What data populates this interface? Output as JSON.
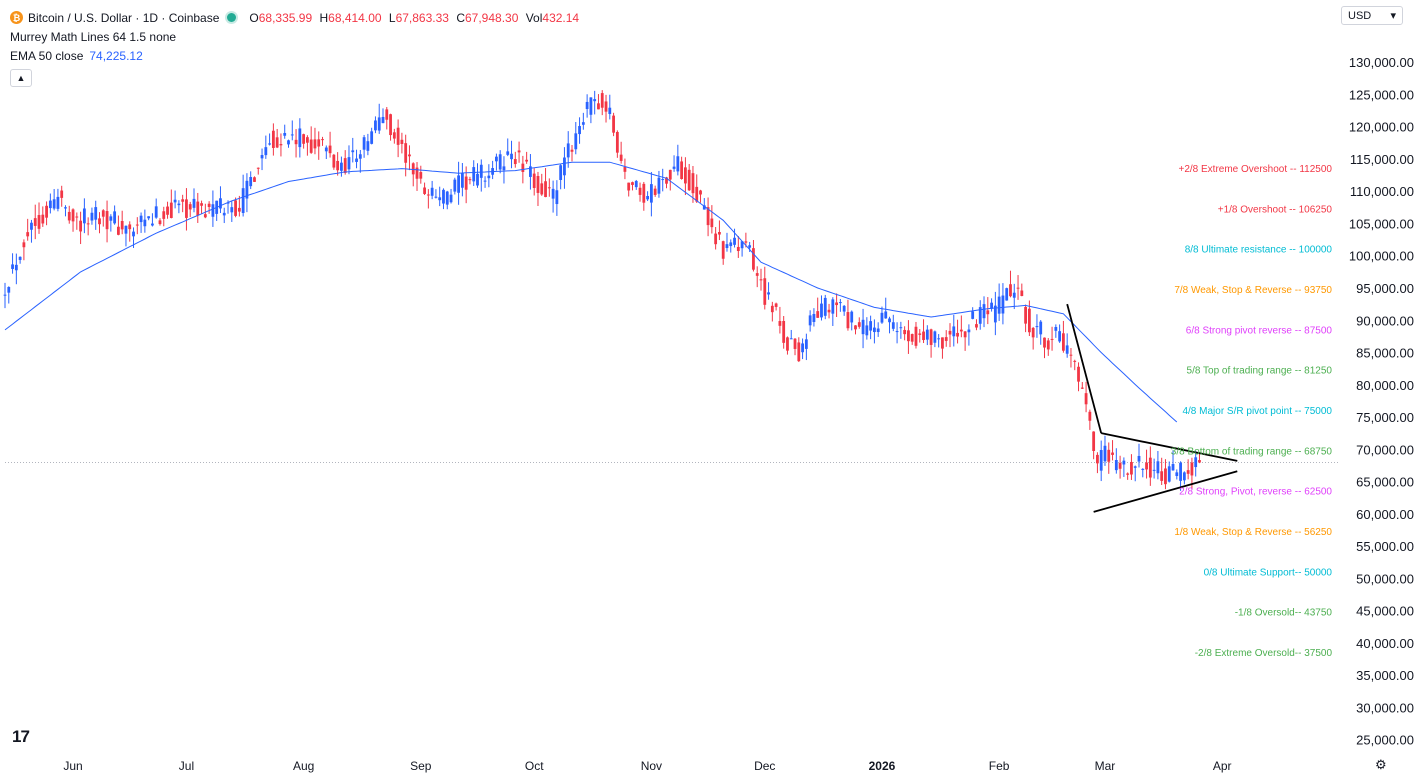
{
  "header": {
    "symbol_title": "Bitcoin / U.S. Dollar · 1D · Coinbase",
    "ohlc": [
      {
        "key": "O",
        "value": "68,335.99"
      },
      {
        "key": "H",
        "value": "68,414.00"
      },
      {
        "key": "L",
        "value": "67,863.33"
      },
      {
        "key": "C",
        "value": "67,948.30"
      },
      {
        "key": "Vol",
        "value": "432.14"
      }
    ],
    "indicator1": "Murrey Math Lines 64 1.5 none",
    "indicator2_label": "EMA 50 close",
    "indicator2_value": "74,225.12",
    "collapse_icon": "chevron-up-icon"
  },
  "currency_select": "USD",
  "icons": {
    "coin": "bitcoin-icon",
    "logo": "tradingview-logo",
    "settings": "gear-icon"
  },
  "colors": {
    "up": "#2962ff",
    "down": "#f23645",
    "ema": "#2962ff",
    "line_ref": "#b2b5be"
  },
  "chart_data": {
    "type": "candlestick",
    "y_axis": {
      "min": 22000,
      "max": 132000,
      "ticks": [
        "130,000.00",
        "125,000.00",
        "120,000.00",
        "115,000.00",
        "110,000.00",
        "105,000.00",
        "100,000.00",
        "95,000.00",
        "90,000.00",
        "85,000.00",
        "80,000.00",
        "75,000.00",
        "70,000.00",
        "65,000.00",
        "60,000.00",
        "55,000.00",
        "50,000.00",
        "45,000.00",
        "40,000.00",
        "35,000.00",
        "30,000.00",
        "25,000.00"
      ]
    },
    "x_axis": {
      "labels": [
        {
          "text": "Jun",
          "day": 18
        },
        {
          "text": "Jul",
          "day": 48
        },
        {
          "text": "Aug",
          "day": 79
        },
        {
          "text": "Sep",
          "day": 110
        },
        {
          "text": "Oct",
          "day": 140
        },
        {
          "text": "Nov",
          "day": 171
        },
        {
          "text": "Dec",
          "day": 201
        },
        {
          "text": "2026",
          "day": 232,
          "bold": true
        },
        {
          "text": "Feb",
          "day": 263
        },
        {
          "text": "Mar",
          "day": 291
        },
        {
          "text": "Apr",
          "day": 322
        }
      ]
    },
    "price_anchors": [
      [
        0,
        95500
      ],
      [
        6,
        104000
      ],
      [
        14,
        109000
      ],
      [
        20,
        105000
      ],
      [
        24,
        107000
      ],
      [
        33,
        103500
      ],
      [
        40,
        106000
      ],
      [
        46,
        108000
      ],
      [
        52,
        107000
      ],
      [
        62,
        107800
      ],
      [
        70,
        118500
      ],
      [
        77,
        118000
      ],
      [
        84,
        117000
      ],
      [
        88,
        113500
      ],
      [
        95,
        117000
      ],
      [
        100,
        122000
      ],
      [
        104,
        117500
      ],
      [
        110,
        111000
      ],
      [
        116,
        109000
      ],
      [
        122,
        111500
      ],
      [
        128,
        113000
      ],
      [
        134,
        116000
      ],
      [
        140,
        111500
      ],
      [
        145,
        109000
      ],
      [
        152,
        121000
      ],
      [
        157,
        124000
      ],
      [
        160,
        121500
      ],
      [
        164,
        112000
      ],
      [
        170,
        109000
      ],
      [
        174,
        112000
      ],
      [
        178,
        114000
      ],
      [
        182,
        111000
      ],
      [
        186,
        105000
      ],
      [
        191,
        100500
      ],
      [
        196,
        102000
      ],
      [
        198,
        98000
      ],
      [
        202,
        93000
      ],
      [
        206,
        87500
      ],
      [
        210,
        85000
      ],
      [
        214,
        91000
      ],
      [
        220,
        92500
      ],
      [
        226,
        88000
      ],
      [
        232,
        90000
      ],
      [
        238,
        88000
      ],
      [
        244,
        87500
      ],
      [
        250,
        87200
      ],
      [
        255,
        89000
      ],
      [
        259,
        91000
      ],
      [
        262,
        90800
      ],
      [
        265,
        94500
      ],
      [
        268,
        93500
      ],
      [
        271,
        89500
      ],
      [
        275,
        87500
      ],
      [
        279,
        87000
      ],
      [
        282,
        84000
      ],
      [
        285,
        78000
      ],
      [
        287,
        73000
      ],
      [
        289,
        66500
      ],
      [
        291,
        69500
      ],
      [
        294,
        67000
      ],
      [
        298,
        66800
      ],
      [
        302,
        67800
      ],
      [
        306,
        66000
      ],
      [
        310,
        65800
      ],
      [
        314,
        67800
      ],
      [
        316,
        67950
      ]
    ],
    "ema": {
      "label": "EMA 50 close",
      "last": 74225.12,
      "color": "#2962ff",
      "anchors": [
        [
          0,
          88500
        ],
        [
          20,
          97500
        ],
        [
          40,
          103500
        ],
        [
          60,
          108500
        ],
        [
          75,
          111500
        ],
        [
          90,
          113000
        ],
        [
          105,
          113500
        ],
        [
          120,
          112800
        ],
        [
          135,
          113200
        ],
        [
          150,
          114500
        ],
        [
          160,
          114500
        ],
        [
          175,
          112000
        ],
        [
          190,
          105500
        ],
        [
          200,
          99000
        ],
        [
          215,
          95000
        ],
        [
          230,
          92000
        ],
        [
          245,
          90500
        ],
        [
          260,
          91800
        ],
        [
          270,
          92300
        ],
        [
          280,
          91000
        ],
        [
          290,
          85000
        ],
        [
          300,
          79500
        ],
        [
          310,
          74225
        ]
      ]
    },
    "last_price": 67948.3,
    "murrey_lines": [
      {
        "label": "+2/8 Extreme Overshoot --  112500",
        "value": 112500,
        "color": "#f23645"
      },
      {
        "label": "+1/8 Overshoot --  106250",
        "value": 106250,
        "color": "#f23645"
      },
      {
        "label": "8/8 Ultimate resistance --  100000",
        "value": 100000,
        "color": "#00bcd4"
      },
      {
        "label": "7/8 Weak, Stop & Reverse --  93750",
        "value": 93750,
        "color": "#ff9800"
      },
      {
        "label": "6/8 Strong pivot reverse --  87500",
        "value": 87500,
        "color": "#e040fb"
      },
      {
        "label": "5/8 Top of trading range --  81250",
        "value": 81250,
        "color": "#4caf50"
      },
      {
        "label": "4/8 Major S/R pivot point --  75000",
        "value": 75000,
        "color": "#00bcd4"
      },
      {
        "label": "3/8 Bottom of trading range --  68750",
        "value": 68750,
        "color": "#4caf50"
      },
      {
        "label": "2/8 Strong, Pivot, reverse --  62500",
        "value": 62500,
        "color": "#e040fb"
      },
      {
        "label": "1/8 Weak, Stop & Reverse --  56250",
        "value": 56250,
        "color": "#ff9800"
      },
      {
        "label": "0/8 Ultimate Support--  50000",
        "value": 50000,
        "color": "#00bcd4"
      },
      {
        "label": "-1/8 Oversold--  43750",
        "value": 43750,
        "color": "#4caf50"
      },
      {
        "label": "-2/8 Extreme Oversold--  37500",
        "value": 37500,
        "color": "#4caf50"
      }
    ],
    "trendlines": [
      {
        "name": "pole",
        "points": [
          [
            281,
            92500
          ],
          [
            290,
            72500
          ]
        ]
      },
      {
        "name": "upper-wedge",
        "points": [
          [
            290,
            72500
          ],
          [
            326,
            68200
          ]
        ]
      },
      {
        "name": "lower-wedge",
        "points": [
          [
            288,
            60300
          ],
          [
            326,
            66600
          ]
        ]
      }
    ]
  }
}
